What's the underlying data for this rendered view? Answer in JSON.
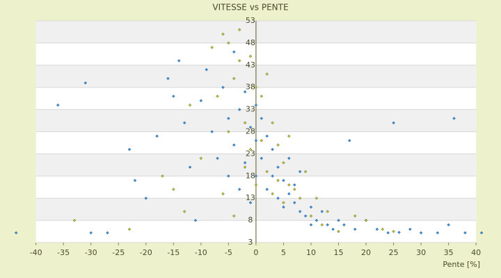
{
  "chart_data": {
    "type": "scatter",
    "title": "VITESSE vs PENTE",
    "x_label": "Pente [%]",
    "xlim": [
      -44,
      42
    ],
    "xticks": [
      -40,
      -35,
      -30,
      -25,
      -20,
      -15,
      -10,
      -5,
      0,
      5,
      10,
      15,
      20,
      25,
      30,
      35,
      40
    ],
    "ylim": [
      3,
      53
    ],
    "yticks": [
      3,
      8,
      13,
      18,
      23,
      28,
      33,
      38,
      43,
      48,
      53
    ],
    "grid": true,
    "series": [
      {
        "color": "#3a8fd9",
        "x": [
          -43.6,
          -36,
          -31,
          -30,
          -27,
          -23,
          -22,
          -20,
          -18,
          -16,
          -15,
          -14,
          -13,
          -12,
          -11,
          -10,
          -9,
          -8,
          -7,
          -6,
          -5,
          -5,
          -4,
          -4,
          -3,
          -3,
          -2,
          -2,
          -1,
          -1,
          0,
          0,
          0,
          1,
          1,
          2,
          2,
          3,
          3,
          4,
          4,
          5,
          5,
          6,
          6,
          7,
          7,
          8,
          8,
          9,
          10,
          10,
          11,
          12,
          13,
          14,
          15,
          16,
          17,
          18,
          20,
          22,
          24,
          25,
          26,
          28,
          30,
          33,
          35,
          36,
          38,
          41
        ],
        "values": [
          5.2,
          34,
          39,
          5.2,
          5.2,
          24,
          17,
          13,
          27,
          40,
          36,
          44,
          30,
          20,
          8,
          35,
          42,
          28,
          22,
          38,
          31,
          18,
          46,
          25,
          33,
          15,
          37,
          21,
          29,
          12,
          34,
          26,
          18,
          31,
          22,
          27,
          15,
          24,
          18,
          20,
          13,
          17,
          11,
          14,
          22,
          12,
          16,
          10,
          19,
          9,
          11,
          7,
          8,
          10,
          7,
          6,
          8,
          7,
          26,
          6,
          8,
          6,
          5.2,
          30,
          5.3,
          6,
          5.2,
          5.2,
          7,
          31,
          5.2,
          5.2
        ]
      },
      {
        "color": "#c8c020",
        "x": [
          -33,
          -23,
          -17,
          -15,
          -13,
          -12,
          -10,
          -8,
          -7,
          -6,
          -6,
          -5,
          -5,
          -4,
          -4,
          -3,
          -3,
          -2,
          -2,
          -1,
          -1,
          0,
          0,
          1,
          1,
          2,
          2,
          3,
          3,
          4,
          4,
          5,
          5,
          6,
          6,
          7,
          8,
          9,
          10,
          11,
          12,
          13,
          15,
          18,
          20,
          23,
          25
        ],
        "values": [
          8,
          6,
          18,
          15,
          10,
          34,
          22,
          47,
          36,
          50,
          14,
          48,
          28,
          40,
          9,
          51,
          44,
          30,
          20,
          45,
          24,
          38,
          16,
          36,
          26,
          41,
          19,
          30,
          14,
          25,
          17,
          21,
          12,
          27,
          16,
          15,
          13,
          19,
          9,
          13,
          7,
          10,
          5.5,
          9,
          8,
          6,
          5.5
        ]
      }
    ]
  }
}
